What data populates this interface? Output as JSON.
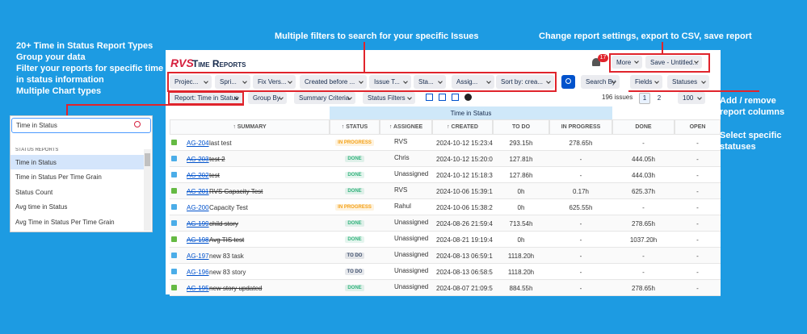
{
  "annotations": {
    "left": [
      "20+ Time in Status Report Types",
      "Group your data",
      "Filter your reports for specific time",
      "in status information",
      "Multiple Chart types"
    ],
    "filters": "Multiple filters to search for your specific Issues",
    "settings": "Change report settings, export to CSV, save report",
    "columns": [
      "Add / remove",
      "report columns"
    ],
    "statuses": [
      "Select specific",
      "statuses"
    ]
  },
  "header": {
    "logo": "RVS",
    "title": "Time Reports",
    "notifications": "17",
    "more": "More",
    "save": "Save - Untitled..."
  },
  "filters": [
    "Projec...",
    "Spri...",
    "Fix Vers...",
    "Created before ...",
    "Issue T...",
    "Sta...",
    "Assig...",
    "Sort by: crea..."
  ],
  "search_by": "Search By",
  "fields": "Fields",
  "statuses": "Statuses",
  "toolbar": {
    "report": "Report: Time in Status",
    "group_by": "Group By",
    "summary_criteria": "Summary Criteria",
    "status_filters": "Status Filters",
    "issues": "196 issues",
    "pages": [
      "1",
      "2"
    ],
    "page_size": "100"
  },
  "dropdown": {
    "search": "Time in Status",
    "section": "STATUS REPORTS",
    "items": [
      "Time in Status",
      "Time in Status Per Time Grain",
      "Status Count",
      "Avg time in Status",
      "Avg Time in Status Per Time Grain"
    ]
  },
  "table": {
    "group": "Time in Status",
    "columns": [
      "↑ SUMMARY",
      "↑ STATUS",
      "↑ ASSIGNEE",
      "↑ CREATED",
      "TO DO",
      "IN PROGRESS",
      "DONE",
      "OPEN"
    ],
    "rows": [
      {
        "key": "AG-204",
        "summary": "last test",
        "status": "IN PROGRESS",
        "status_color": "#f4a21a",
        "assignee": "RVS",
        "created": "2024-10-12 15:23:44",
        "cells": [
          "293.15h",
          "278.65h",
          "-",
          "-"
        ]
      },
      {
        "key": "AG-203",
        "summary": "test 2",
        "status": "DONE",
        "status_color": "#36b37e",
        "assignee": "Chris",
        "created": "2024-10-12 15:20:05",
        "cells": [
          "127.81h",
          "-",
          "444.05h",
          "-"
        ]
      },
      {
        "key": "AG-202",
        "summary": "test",
        "status": "DONE",
        "status_color": "#36b37e",
        "assignee": "Unassigned",
        "created": "2024-10-12 15:18:32",
        "cells": [
          "127.86h",
          "-",
          "444.03h",
          "-"
        ]
      },
      {
        "key": "AG-201",
        "summary": "RVS Capacity Test",
        "status": "DONE",
        "status_color": "#36b37e",
        "assignee": "RVS",
        "created": "2024-10-06 15:39:10",
        "cells": [
          "0h",
          "0.17h",
          "625.37h",
          "-"
        ]
      },
      {
        "key": "AG-200",
        "summary": "Capacity Test",
        "status": "IN PROGRESS",
        "status_color": "#f4a21a",
        "assignee": "Rahul",
        "created": "2024-10-06 15:38:26",
        "cells": [
          "0h",
          "625.55h",
          "-",
          "-"
        ]
      },
      {
        "key": "AG-199",
        "summary": "child story",
        "status": "DONE",
        "status_color": "#36b37e",
        "assignee": "Unassigned",
        "created": "2024-08-26 21:59:44",
        "cells": [
          "713.54h",
          "-",
          "278.65h",
          "-"
        ]
      },
      {
        "key": "AG-198",
        "summary": "Avg TIS test",
        "status": "DONE",
        "status_color": "#36b37e",
        "assignee": "Unassigned",
        "created": "2024-08-21 19:19:47",
        "cells": [
          "0h",
          "-",
          "1037.20h",
          "-"
        ]
      },
      {
        "key": "AG-197",
        "summary": "new 83 task",
        "status": "TO DO",
        "status_color": "#42526e",
        "assignee": "Unassigned",
        "created": "2024-08-13 06:59:15",
        "cells": [
          "1118.20h",
          "-",
          "-",
          "-"
        ]
      },
      {
        "key": "AG-196",
        "summary": "new 83 story",
        "status": "TO DO",
        "status_color": "#42526e",
        "assignee": "Unassigned",
        "created": "2024-08-13 06:58:50",
        "cells": [
          "1118.20h",
          "-",
          "-",
          "-"
        ]
      },
      {
        "key": "AG-195",
        "summary": "new story updated",
        "status": "DONE",
        "status_color": "#36b37e",
        "assignee": "Unassigned",
        "created": "2024-08-07 21:09:50",
        "cells": [
          "884.55h",
          "-",
          "278.65h",
          "-"
        ]
      }
    ]
  }
}
